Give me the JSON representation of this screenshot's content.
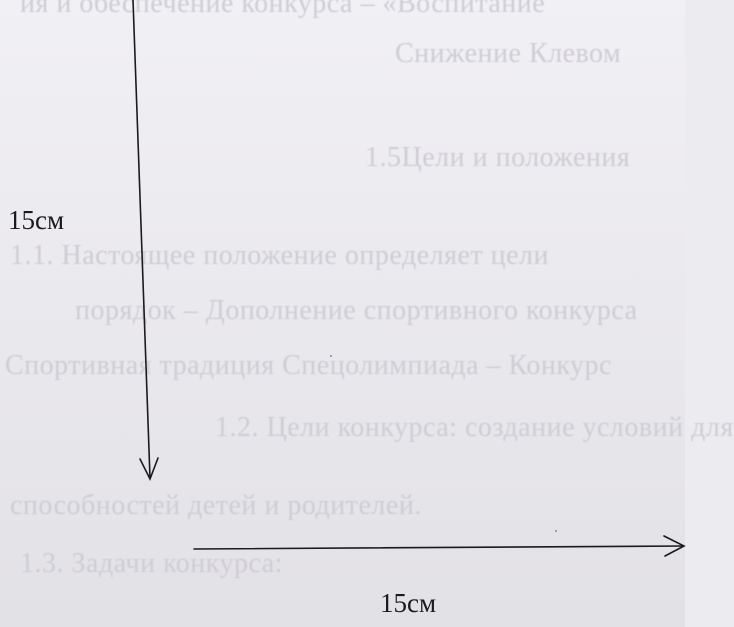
{
  "diagram": {
    "vertical_arrow_label": "15см",
    "horizontal_arrow_label": "15см"
  },
  "background_bleed_text": [
    "ия и обеспечение конкурса – «Воспитание",
    "Снижение Клевом",
    "1.5Цели и положения",
    "1.1.   Настоящее положение определяет цели",
    "порядок    – Дополнение  спортивного  конкурса",
    "Спортивная традиция Спецолимпиада – Конкурс",
    "1.2.   Цели  конкурса:  создание  условий  для",
    "способностей детей и родителей.",
    "1.3.   Задачи конкурса:"
  ],
  "colors": {
    "ink": "#1b1b1f",
    "paper": "#ecebef",
    "bleed": "#cfcdd4"
  }
}
